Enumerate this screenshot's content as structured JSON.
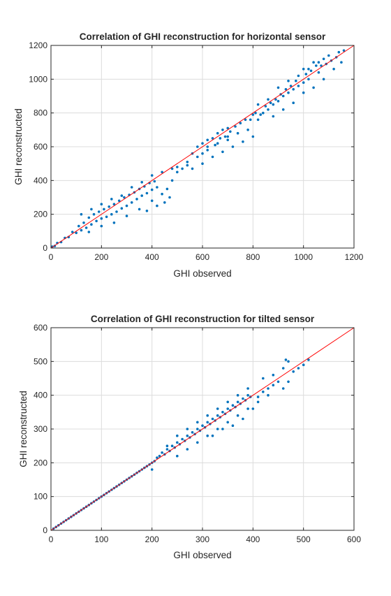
{
  "chart_data": [
    {
      "type": "scatter",
      "title": "Correlation of GHI reconstruction for horizontal sensor",
      "xlabel": "GHI observed",
      "ylabel": "GHI reconstructed",
      "xlim": [
        0,
        1200
      ],
      "ylim": [
        0,
        1200
      ],
      "xticks": [
        0,
        200,
        400,
        600,
        800,
        1000,
        1200
      ],
      "yticks": [
        0,
        200,
        400,
        600,
        800,
        1000,
        1200
      ],
      "grid": true,
      "marker_color": "#0072BD",
      "reference_line_color": "#FF0000",
      "reference_line": {
        "x": [
          0,
          1200
        ],
        "y": [
          0,
          1200
        ]
      },
      "series": [
        {
          "values_xy": [
            [
              5,
              8
            ],
            [
              15,
              12
            ],
            [
              25,
              30
            ],
            [
              40,
              35
            ],
            [
              55,
              60
            ],
            [
              70,
              65
            ],
            [
              85,
              95
            ],
            [
              100,
              90
            ],
            [
              110,
              130
            ],
            [
              120,
              105
            ],
            [
              130,
              150
            ],
            [
              140,
              120
            ],
            [
              150,
              180
            ],
            [
              160,
              140
            ],
            [
              170,
              200
            ],
            [
              180,
              160
            ],
            [
              190,
              215
            ],
            [
              200,
              175
            ],
            [
              210,
              230
            ],
            [
              220,
              185
            ],
            [
              230,
              245
            ],
            [
              240,
              200
            ],
            [
              250,
              260
            ],
            [
              260,
              215
            ],
            [
              270,
              280
            ],
            [
              280,
              235
            ],
            [
              290,
              300
            ],
            [
              300,
              250
            ],
            [
              310,
              315
            ],
            [
              320,
              270
            ],
            [
              330,
              330
            ],
            [
              340,
              290
            ],
            [
              350,
              350
            ],
            [
              360,
              310
            ],
            [
              370,
              365
            ],
            [
              380,
              325
            ],
            [
              390,
              385
            ],
            [
              400,
              345
            ],
            [
              410,
              395
            ],
            [
              420,
              360
            ],
            [
              150,
              95
            ],
            [
              200,
              130
            ],
            [
              250,
              150
            ],
            [
              300,
              190
            ],
            [
              350,
              230
            ],
            [
              400,
              280
            ],
            [
              450,
              270
            ],
            [
              470,
              300
            ],
            [
              420,
              250
            ],
            [
              380,
              220
            ],
            [
              120,
              200
            ],
            [
              160,
              230
            ],
            [
              200,
              260
            ],
            [
              240,
              290
            ],
            [
              280,
              310
            ],
            [
              320,
              360
            ],
            [
              360,
              390
            ],
            [
              400,
              430
            ],
            [
              440,
              450
            ],
            [
              480,
              470
            ],
            [
              500,
              480
            ],
            [
              540,
              510
            ],
            [
              560,
              560
            ],
            [
              580,
              600
            ],
            [
              600,
              620
            ],
            [
              620,
              640
            ],
            [
              640,
              650
            ],
            [
              660,
              680
            ],
            [
              680,
              700
            ],
            [
              700,
              710
            ],
            [
              560,
              470
            ],
            [
              600,
              500
            ],
            [
              640,
              540
            ],
            [
              680,
              570
            ],
            [
              720,
              600
            ],
            [
              760,
              630
            ],
            [
              800,
              660
            ],
            [
              700,
              640
            ],
            [
              740,
              680
            ],
            [
              780,
              700
            ],
            [
              820,
              760
            ],
            [
              840,
              800
            ],
            [
              860,
              820
            ],
            [
              880,
              850
            ],
            [
              900,
              870
            ],
            [
              920,
              900
            ],
            [
              940,
              920
            ],
            [
              960,
              940
            ],
            [
              980,
              960
            ],
            [
              1000,
              980
            ],
            [
              820,
              850
            ],
            [
              860,
              880
            ],
            [
              900,
              950
            ],
            [
              940,
              990
            ],
            [
              980,
              1020
            ],
            [
              1020,
              1060
            ],
            [
              1060,
              1100
            ],
            [
              1100,
              1140
            ],
            [
              1140,
              1160
            ],
            [
              1160,
              1170
            ],
            [
              880,
              780
            ],
            [
              920,
              820
            ],
            [
              960,
              860
            ],
            [
              1000,
              920
            ],
            [
              1040,
              950
            ],
            [
              1080,
              1000
            ],
            [
              1120,
              1060
            ],
            [
              1150,
              1100
            ],
            [
              1020,
              1000
            ],
            [
              1060,
              1040
            ],
            [
              790,
              760
            ],
            [
              810,
              800
            ],
            [
              830,
              790
            ],
            [
              850,
              840
            ],
            [
              870,
              860
            ],
            [
              890,
              880
            ],
            [
              910,
              910
            ],
            [
              930,
              940
            ],
            [
              950,
              960
            ],
            [
              970,
              990
            ],
            [
              1010,
              1030
            ],
            [
              1030,
              1050
            ],
            [
              1050,
              1080
            ],
            [
              1070,
              1080
            ],
            [
              1090,
              1090
            ],
            [
              1110,
              1110
            ],
            [
              1130,
              1130
            ],
            [
              1000,
              1060
            ],
            [
              1040,
              1100
            ],
            [
              1080,
              1120
            ],
            [
              600,
              560
            ],
            [
              620,
              580
            ],
            [
              650,
              610
            ],
            [
              670,
              650
            ],
            [
              690,
              660
            ],
            [
              710,
              690
            ],
            [
              730,
              720
            ],
            [
              750,
              740
            ],
            [
              770,
              760
            ],
            [
              800,
              790
            ],
            [
              480,
              400
            ],
            [
              460,
              350
            ],
            [
              440,
              320
            ],
            [
              500,
              450
            ],
            [
              520,
              470
            ],
            [
              540,
              490
            ],
            [
              580,
              540
            ],
            [
              620,
              600
            ],
            [
              660,
              620
            ],
            [
              700,
              660
            ]
          ]
        }
      ]
    },
    {
      "type": "scatter",
      "title": "Correlation of GHI reconstruction for tilted sensor",
      "xlabel": "GHI observed",
      "ylabel": "GHI reconstructed",
      "xlim": [
        0,
        600
      ],
      "ylim": [
        0,
        600
      ],
      "xticks": [
        0,
        100,
        200,
        300,
        400,
        500,
        600
      ],
      "yticks": [
        0,
        100,
        200,
        300,
        400,
        500,
        600
      ],
      "grid": true,
      "marker_color": "#0072BD",
      "reference_line_color": "#FF0000",
      "reference_line": {
        "x": [
          0,
          600
        ],
        "y": [
          0,
          600
        ]
      },
      "series": [
        {
          "values_xy": [
            [
              5,
              5
            ],
            [
              10,
              10
            ],
            [
              15,
              15
            ],
            [
              20,
              20
            ],
            [
              25,
              25
            ],
            [
              30,
              30
            ],
            [
              35,
              35
            ],
            [
              40,
              40
            ],
            [
              45,
              45
            ],
            [
              50,
              50
            ],
            [
              55,
              55
            ],
            [
              60,
              60
            ],
            [
              65,
              65
            ],
            [
              70,
              70
            ],
            [
              75,
              75
            ],
            [
              80,
              80
            ],
            [
              85,
              85
            ],
            [
              90,
              90
            ],
            [
              95,
              95
            ],
            [
              100,
              100
            ],
            [
              105,
              105
            ],
            [
              110,
              110
            ],
            [
              115,
              115
            ],
            [
              120,
              120
            ],
            [
              125,
              125
            ],
            [
              130,
              130
            ],
            [
              135,
              135
            ],
            [
              140,
              140
            ],
            [
              145,
              145
            ],
            [
              150,
              150
            ],
            [
              155,
              155
            ],
            [
              160,
              160
            ],
            [
              165,
              165
            ],
            [
              170,
              170
            ],
            [
              175,
              175
            ],
            [
              180,
              180
            ],
            [
              185,
              185
            ],
            [
              190,
              190
            ],
            [
              195,
              195
            ],
            [
              200,
              200
            ],
            [
              200,
              180
            ],
            [
              205,
              205
            ],
            [
              210,
              215
            ],
            [
              215,
              220
            ],
            [
              220,
              230
            ],
            [
              225,
              225
            ],
            [
              230,
              240
            ],
            [
              235,
              235
            ],
            [
              240,
              250
            ],
            [
              245,
              245
            ],
            [
              250,
              260
            ],
            [
              255,
              255
            ],
            [
              260,
              270
            ],
            [
              265,
              265
            ],
            [
              270,
              280
            ],
            [
              275,
              275
            ],
            [
              280,
              290
            ],
            [
              285,
              285
            ],
            [
              290,
              300
            ],
            [
              295,
              295
            ],
            [
              300,
              310
            ],
            [
              305,
              305
            ],
            [
              310,
              320
            ],
            [
              315,
              315
            ],
            [
              320,
              330
            ],
            [
              325,
              325
            ],
            [
              330,
              340
            ],
            [
              335,
              335
            ],
            [
              340,
              350
            ],
            [
              345,
              345
            ],
            [
              350,
              360
            ],
            [
              355,
              355
            ],
            [
              360,
              370
            ],
            [
              365,
              365
            ],
            [
              370,
              380
            ],
            [
              375,
              375
            ],
            [
              380,
              390
            ],
            [
              385,
              385
            ],
            [
              390,
              400
            ],
            [
              395,
              395
            ],
            [
              230,
              250
            ],
            [
              250,
              280
            ],
            [
              270,
              300
            ],
            [
              290,
              320
            ],
            [
              310,
              340
            ],
            [
              330,
              360
            ],
            [
              350,
              380
            ],
            [
              370,
              400
            ],
            [
              390,
              420
            ],
            [
              420,
              450
            ],
            [
              250,
              220
            ],
            [
              270,
              240
            ],
            [
              290,
              260
            ],
            [
              310,
              280
            ],
            [
              330,
              300
            ],
            [
              350,
              320
            ],
            [
              370,
              340
            ],
            [
              390,
              360
            ],
            [
              410,
              380
            ],
            [
              430,
              400
            ],
            [
              440,
              460
            ],
            [
              460,
              480
            ],
            [
              470,
              500
            ],
            [
              465,
              505
            ],
            [
              480,
              470
            ],
            [
              490,
              480
            ],
            [
              500,
              490
            ],
            [
              510,
              505
            ],
            [
              460,
              420
            ],
            [
              470,
              440
            ],
            [
              320,
              280
            ],
            [
              340,
              300
            ],
            [
              360,
              310
            ],
            [
              380,
              330
            ],
            [
              400,
              360
            ],
            [
              410,
              395
            ],
            [
              420,
              410
            ],
            [
              430,
              420
            ],
            [
              440,
              430
            ],
            [
              450,
              440
            ]
          ]
        }
      ]
    }
  ]
}
